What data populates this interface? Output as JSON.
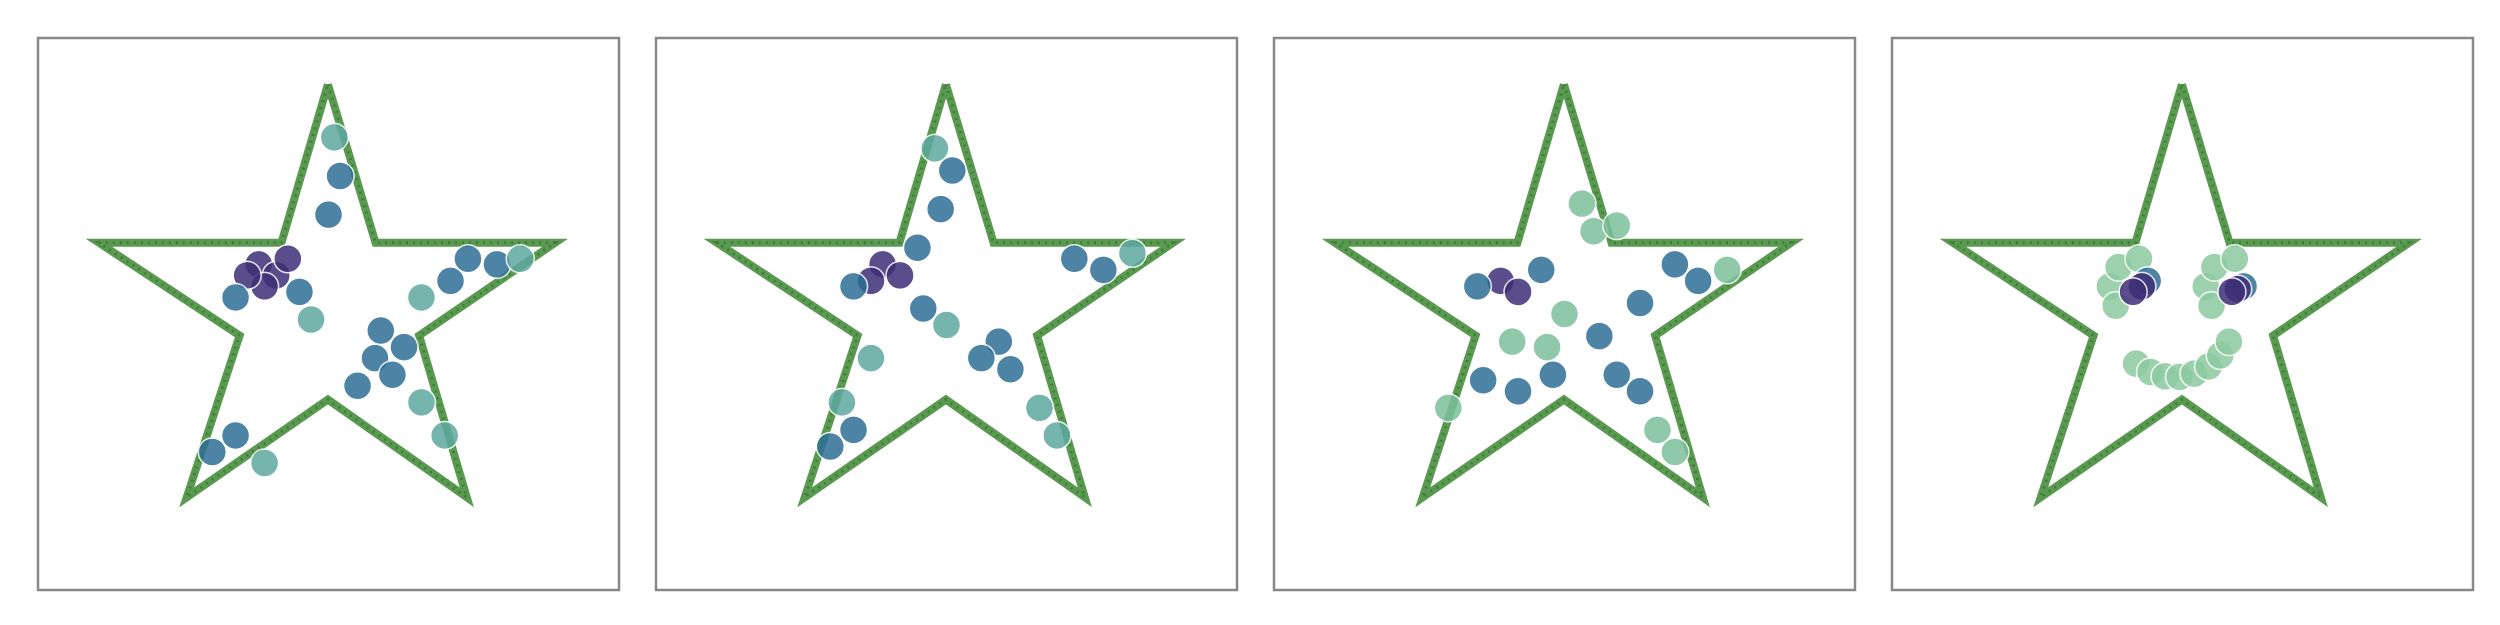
{
  "chart_data": [
    {
      "type": "scatter",
      "xlim": [
        0,
        10
      ],
      "ylim": [
        0,
        10
      ],
      "series": [
        {
          "mode": "line",
          "color": "#5a9a50",
          "x": [
            4.99,
            5.81,
            8.9,
            6.56,
            7.38,
            4.99,
            2.56,
            3.47,
            1.05,
            4.19,
            4.99
          ],
          "values": [
            9.16,
            6.29,
            6.29,
            4.61,
            1.68,
            3.45,
            1.68,
            4.61,
            6.29,
            6.29,
            9.16
          ]
        },
        {
          "color": "#3e2f77",
          "x": [
            3.8,
            4.1,
            3.9,
            4.3,
            3.6
          ],
          "values": [
            5.9,
            5.7,
            5.5,
            6.0,
            5.7
          ]
        },
        {
          "color": "#2e6f96",
          "x": [
            4.5,
            3.4,
            5.0,
            5.2,
            5.8,
            6.1,
            5.5,
            6.3,
            7.4,
            7.9,
            7.1,
            3.4,
            3.0,
            5.9
          ],
          "values": [
            5.4,
            5.3,
            6.8,
            7.5,
            4.2,
            3.9,
            3.7,
            4.4,
            6.0,
            5.9,
            5.6,
            2.8,
            2.5,
            4.7
          ]
        },
        {
          "color": "#5fa9a0",
          "x": [
            5.1,
            6.6,
            6.6,
            7.0,
            3.9,
            4.7,
            8.3
          ],
          "values": [
            8.2,
            5.3,
            3.4,
            2.8,
            2.3,
            4.9,
            6.0
          ]
        }
      ]
    },
    {
      "type": "scatter",
      "xlim": [
        0,
        10
      ],
      "ylim": [
        0,
        10
      ],
      "series": [
        {
          "mode": "line",
          "color": "#5a9a50",
          "x": [
            4.99,
            5.81,
            8.9,
            6.56,
            7.38,
            4.99,
            2.56,
            3.47,
            1.05,
            4.19,
            4.99
          ],
          "values": [
            9.16,
            6.29,
            6.29,
            4.61,
            1.68,
            3.45,
            1.68,
            4.61,
            6.29,
            6.29,
            9.16
          ]
        },
        {
          "color": "#3e2f77",
          "x": [
            3.9,
            4.2,
            3.7
          ],
          "values": [
            5.9,
            5.7,
            5.6
          ]
        },
        {
          "color": "#2e6f96",
          "x": [
            4.5,
            3.4,
            4.9,
            5.1,
            5.9,
            6.1,
            5.6,
            7.2,
            7.7,
            3.4,
            3.0,
            4.6
          ],
          "values": [
            6.2,
            5.5,
            6.9,
            7.6,
            4.5,
            4.0,
            4.2,
            6.0,
            5.8,
            2.9,
            2.6,
            5.1
          ]
        },
        {
          "color": "#5fa9a0",
          "x": [
            4.8,
            6.6,
            6.9,
            3.7,
            5.0,
            8.2,
            3.2
          ],
          "values": [
            8.0,
            3.3,
            2.8,
            4.2,
            4.8,
            6.1,
            3.4
          ]
        }
      ]
    },
    {
      "type": "scatter",
      "xlim": [
        0,
        10
      ],
      "ylim": [
        0,
        10
      ],
      "series": [
        {
          "mode": "line",
          "color": "#5a9a50",
          "x": [
            4.99,
            5.81,
            8.9,
            6.56,
            7.38,
            4.99,
            2.56,
            3.47,
            1.05,
            4.19,
            4.99
          ],
          "values": [
            9.16,
            6.29,
            6.29,
            4.61,
            1.68,
            3.45,
            1.68,
            4.61,
            6.29,
            6.29,
            9.16
          ]
        },
        {
          "color": "#3e2f77",
          "x": [
            3.9,
            4.2
          ],
          "values": [
            5.6,
            5.4
          ]
        },
        {
          "color": "#2e6f96",
          "x": [
            4.6,
            3.5,
            6.9,
            7.3,
            6.3,
            5.6,
            5.9,
            6.3,
            3.6,
            4.2,
            4.8
          ],
          "values": [
            5.8,
            5.5,
            5.9,
            5.6,
            5.2,
            4.6,
            3.9,
            3.6,
            3.8,
            3.6,
            3.9
          ]
        },
        {
          "color": "#7dbf9c",
          "x": [
            5.3,
            5.5,
            5.9,
            5.0,
            3.0,
            6.6,
            6.9,
            4.7,
            7.8,
            4.1
          ],
          "values": [
            7.0,
            6.5,
            6.6,
            5.0,
            3.3,
            2.9,
            2.5,
            4.4,
            5.8,
            4.5
          ]
        }
      ]
    },
    {
      "type": "scatter",
      "xlim": [
        0,
        10
      ],
      "ylim": [
        0,
        10
      ],
      "series": [
        {
          "mode": "line",
          "color": "#5a9a50",
          "x": [
            4.99,
            5.81,
            8.9,
            6.56,
            7.38,
            4.99,
            2.56,
            3.47,
            1.05,
            4.19,
            4.99
          ],
          "values": [
            9.16,
            6.29,
            6.29,
            4.61,
            1.68,
            3.45,
            1.68,
            4.61,
            6.29,
            6.29,
            9.16
          ]
        },
        {
          "color": "#8cc9a0",
          "x": [
            3.75,
            3.9,
            4.25,
            3.85,
            5.4,
            5.55,
            5.9,
            5.5,
            4.2,
            4.45,
            4.7,
            4.95,
            5.2,
            5.45,
            5.65,
            5.8
          ],
          "values": [
            5.5,
            5.85,
            6.0,
            5.15,
            5.5,
            5.85,
            6.0,
            5.15,
            4.1,
            3.95,
            3.87,
            3.86,
            3.92,
            4.05,
            4.25,
            4.5
          ]
        },
        {
          "color": "#2e6f96",
          "x": [
            4.4,
            6.05
          ],
          "values": [
            5.6,
            5.5
          ]
        },
        {
          "color": "#3e2f77",
          "x": [
            4.3,
            5.95,
            4.15,
            5.85
          ],
          "values": [
            5.5,
            5.45,
            5.4,
            5.4
          ]
        }
      ]
    }
  ]
}
